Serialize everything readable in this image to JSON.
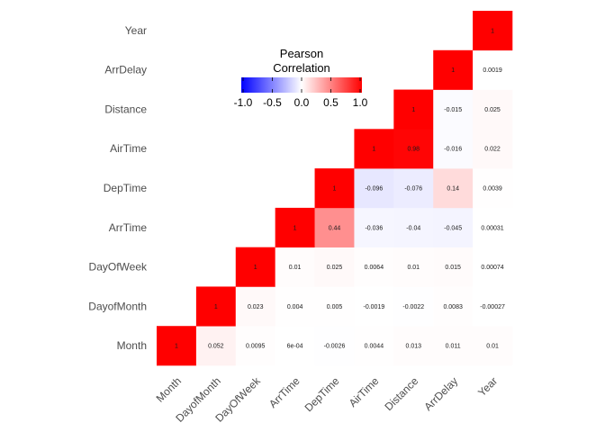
{
  "chart_data": {
    "type": "heatmap",
    "variables": [
      "Month",
      "DayofMonth",
      "DayOfWeek",
      "ArrTime",
      "DepTime",
      "AirTime",
      "Distance",
      "ArrDelay",
      "Year"
    ],
    "x_labels": [
      "Month",
      "DayofMonth",
      "DayOfWeek",
      "ArrTime",
      "DepTime",
      "AirTime",
      "Distance",
      "ArrDelay",
      "Year"
    ],
    "y_labels": [
      "Month",
      "DayofMonth",
      "DayOfWeek",
      "ArrTime",
      "DepTime",
      "AirTime",
      "Distance",
      "ArrDelay",
      "Year"
    ],
    "triangle": "upper",
    "cells": [
      {
        "x": "Month",
        "y": "Month",
        "value": 1,
        "label": "1"
      },
      {
        "x": "DayofMonth",
        "y": "Month",
        "value": 0.052,
        "label": "0.052"
      },
      {
        "x": "DayOfWeek",
        "y": "Month",
        "value": 0.0095,
        "label": "0.0095"
      },
      {
        "x": "ArrTime",
        "y": "Month",
        "value": 0.0006,
        "label": "6e-04"
      },
      {
        "x": "DepTime",
        "y": "Month",
        "value": -0.0026,
        "label": "-0.0026"
      },
      {
        "x": "AirTime",
        "y": "Month",
        "value": 0.0044,
        "label": "0.0044"
      },
      {
        "x": "Distance",
        "y": "Month",
        "value": 0.013,
        "label": "0.013"
      },
      {
        "x": "ArrDelay",
        "y": "Month",
        "value": 0.011,
        "label": "0.011"
      },
      {
        "x": "Year",
        "y": "Month",
        "value": 0.01,
        "label": "0.01"
      },
      {
        "x": "DayofMonth",
        "y": "DayofMonth",
        "value": 1,
        "label": "1"
      },
      {
        "x": "DayOfWeek",
        "y": "DayofMonth",
        "value": 0.023,
        "label": "0.023"
      },
      {
        "x": "ArrTime",
        "y": "DayofMonth",
        "value": 0.004,
        "label": "0.004"
      },
      {
        "x": "DepTime",
        "y": "DayofMonth",
        "value": 0.005,
        "label": "0.005"
      },
      {
        "x": "AirTime",
        "y": "DayofMonth",
        "value": -0.0019,
        "label": "-0.0019"
      },
      {
        "x": "Distance",
        "y": "DayofMonth",
        "value": -0.0022,
        "label": "-0.0022"
      },
      {
        "x": "ArrDelay",
        "y": "DayofMonth",
        "value": 0.0083,
        "label": "0.0083"
      },
      {
        "x": "Year",
        "y": "DayofMonth",
        "value": -0.00027,
        "label": "-0.00027"
      },
      {
        "x": "DayOfWeek",
        "y": "DayOfWeek",
        "value": 1,
        "label": "1"
      },
      {
        "x": "ArrTime",
        "y": "DayOfWeek",
        "value": 0.01,
        "label": "0.01"
      },
      {
        "x": "DepTime",
        "y": "DayOfWeek",
        "value": 0.025,
        "label": "0.025"
      },
      {
        "x": "AirTime",
        "y": "DayOfWeek",
        "value": 0.0064,
        "label": "0.0064"
      },
      {
        "x": "Distance",
        "y": "DayOfWeek",
        "value": 0.01,
        "label": "0.01"
      },
      {
        "x": "ArrDelay",
        "y": "DayOfWeek",
        "value": 0.015,
        "label": "0.015"
      },
      {
        "x": "Year",
        "y": "DayOfWeek",
        "value": 0.00074,
        "label": "0.00074"
      },
      {
        "x": "ArrTime",
        "y": "ArrTime",
        "value": 1,
        "label": "1"
      },
      {
        "x": "DepTime",
        "y": "ArrTime",
        "value": 0.44,
        "label": "0.44"
      },
      {
        "x": "AirTime",
        "y": "ArrTime",
        "value": -0.036,
        "label": "-0.036"
      },
      {
        "x": "Distance",
        "y": "ArrTime",
        "value": -0.04,
        "label": "-0.04"
      },
      {
        "x": "ArrDelay",
        "y": "ArrTime",
        "value": -0.045,
        "label": "-0.045"
      },
      {
        "x": "Year",
        "y": "ArrTime",
        "value": 0.00031,
        "label": "0.00031"
      },
      {
        "x": "DepTime",
        "y": "DepTime",
        "value": 1,
        "label": "1"
      },
      {
        "x": "AirTime",
        "y": "DepTime",
        "value": -0.096,
        "label": "-0.096"
      },
      {
        "x": "Distance",
        "y": "DepTime",
        "value": -0.076,
        "label": "-0.076"
      },
      {
        "x": "ArrDelay",
        "y": "DepTime",
        "value": 0.14,
        "label": "0.14"
      },
      {
        "x": "Year",
        "y": "DepTime",
        "value": 0.0039,
        "label": "0.0039"
      },
      {
        "x": "AirTime",
        "y": "AirTime",
        "value": 1,
        "label": "1"
      },
      {
        "x": "Distance",
        "y": "AirTime",
        "value": 0.98,
        "label": "0.98"
      },
      {
        "x": "ArrDelay",
        "y": "AirTime",
        "value": -0.016,
        "label": "-0.016"
      },
      {
        "x": "Year",
        "y": "AirTime",
        "value": 0.022,
        "label": "0.022"
      },
      {
        "x": "Distance",
        "y": "Distance",
        "value": 1,
        "label": "1"
      },
      {
        "x": "ArrDelay",
        "y": "Distance",
        "value": -0.015,
        "label": "-0.015"
      },
      {
        "x": "Year",
        "y": "Distance",
        "value": 0.025,
        "label": "0.025"
      },
      {
        "x": "ArrDelay",
        "y": "ArrDelay",
        "value": 1,
        "label": "1"
      },
      {
        "x": "Year",
        "y": "ArrDelay",
        "value": 0.0019,
        "label": "0.0019"
      },
      {
        "x": "Year",
        "y": "Year",
        "value": 1,
        "label": "1"
      }
    ],
    "color_scale": {
      "low": "#0000ff",
      "mid": "#ffffff",
      "high": "#ff0000",
      "limits": [
        -1,
        1
      ]
    },
    "legend": {
      "title_line1": "Pearson",
      "title_line2": "Correlation",
      "ticks": [
        -1.0,
        -0.5,
        0.0,
        0.5,
        1.0
      ],
      "tick_labels": [
        "-1.0",
        "-0.5",
        "0.0",
        "0.5",
        "1.0"
      ],
      "placement": "top-center",
      "orientation": "horizontal"
    },
    "grid": false
  }
}
